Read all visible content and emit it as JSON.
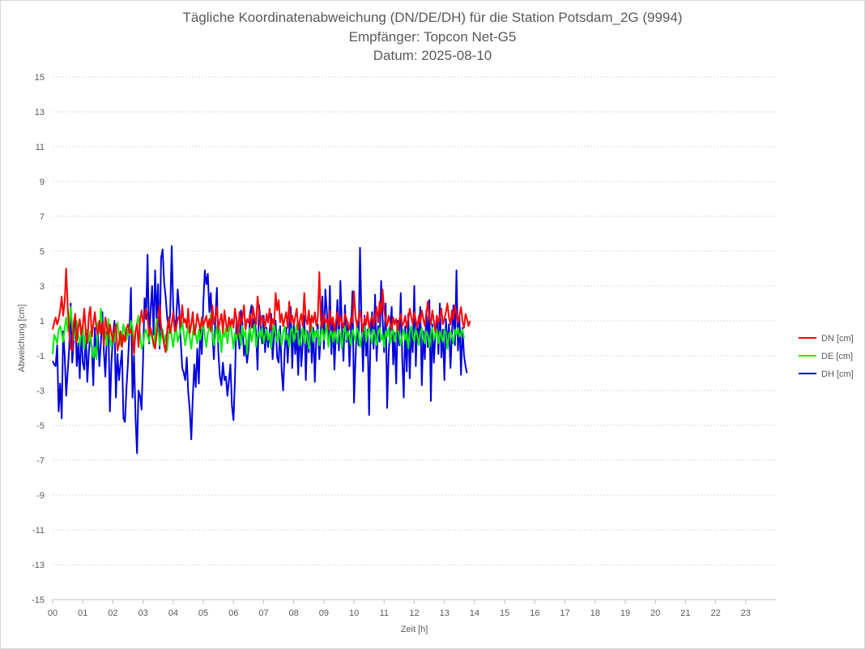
{
  "chart_data": {
    "type": "line",
    "title_lines": [
      "Tägliche Koordinatenabweichung (DN/DE/DH) für die Station Potsdam_2G (9994)",
      "Empfänger: Topcon Net-G5",
      "Datum: 2025-08-10"
    ],
    "xlabel": "Zeit [h]",
    "ylabel": "Abweichung [cm]",
    "xlim": [
      0,
      24
    ],
    "ylim": [
      -15,
      15
    ],
    "x_ticks": [
      "00",
      "01",
      "02",
      "03",
      "04",
      "05",
      "06",
      "07",
      "08",
      "09",
      "10",
      "11",
      "12",
      "13",
      "14",
      "15",
      "16",
      "17",
      "18",
      "19",
      "20",
      "21",
      "22",
      "23"
    ],
    "y_ticks": [
      15,
      13,
      11,
      9,
      7,
      5,
      3,
      1,
      -1,
      -3,
      -5,
      -7,
      -9,
      -11,
      -13,
      -15
    ],
    "grid": "horizontal dotted",
    "legend_position": "right",
    "sample_interval_h": 0.05,
    "series": [
      {
        "name": "DN [cm]",
        "color": "#ff0000",
        "values": [
          0.5,
          0.9,
          1.2,
          0.8,
          1.1,
          1.6,
          2.4,
          1.3,
          2.1,
          4.0,
          1.8,
          0.3,
          -0.6,
          -0.7,
          0.9,
          1.4,
          -0.2,
          0.6,
          1.1,
          0.2,
          0.7,
          1.7,
          0.4,
          -0.3,
          1.3,
          1.8,
          0.1,
          0.8,
          1.5,
          0.6,
          0.2,
          1.0,
          0.3,
          0.9,
          -0.4,
          1.2,
          0.6,
          0.1,
          0.8,
          0.3,
          -0.2,
          0.5,
          0.8,
          -0.7,
          -0.3,
          0.4,
          -0.5,
          0.2,
          -0.2,
          0.6,
          0.8,
          0.3,
          0.5,
          0.1,
          -0.9,
          0.4,
          0.8,
          -0.5,
          1.0,
          1.6,
          0.9,
          1.3,
          1.7,
          1.2,
          0.2,
          0.6,
          0.1,
          -0.3,
          -0.6,
          0.2,
          0.9,
          1.9,
          0.7,
          0.2,
          -0.4,
          -0.8,
          0.5,
          1.2,
          0.3,
          0.8,
          1.5,
          0.4,
          0.6,
          1.1,
          1.3,
          0.7,
          1.9,
          0.9,
          1.1,
          0.6,
          1.7,
          0.3,
          0.8,
          1.5,
          0.2,
          0.6,
          1.4,
          0.9,
          0.5,
          1.2,
          0.7,
          1.0,
          1.3,
          0.6,
          1.1,
          0.4,
          1.9,
          0.8,
          1.2,
          1.8,
          0.5,
          1.0,
          1.4,
          0.3,
          1.6,
          0.9,
          0.4,
          1.2,
          0.7,
          1.1,
          0.6,
          1.7,
          1.0,
          0.2,
          1.5,
          0.8,
          1.2,
          1.9,
          0.5,
          1.1,
          0.9,
          1.4,
          0.6,
          1.8,
          1.2,
          0.8,
          2.4,
          1.5,
          0.7,
          1.3,
          1.0,
          0.6,
          1.4,
          0.9,
          1.7,
          0.5,
          1.1,
          0.8,
          2.6,
          1.6,
          2.2,
          0.9,
          1.4,
          0.7,
          1.1,
          1.5,
          0.6,
          2.1,
          0.9,
          1.3,
          0.8,
          1.2,
          1.7,
          0.5,
          1.0,
          1.4,
          0.7,
          2.6,
          1.1,
          0.8,
          1.6,
          0.4,
          1.3,
          0.9,
          1.5,
          0.7,
          1.2,
          3.8,
          1.0,
          0.6,
          1.4,
          0.9,
          1.1,
          0.5,
          1.6,
          0.8,
          1.2,
          0.4,
          1.0,
          1.5,
          0.7,
          1.3,
          0.9,
          0.6,
          1.4,
          1.1,
          0.8,
          0.5,
          1.2,
          0.9,
          2.7,
          1.3,
          0.7,
          1.1,
          1.6,
          0.9,
          0.4,
          1.2,
          0.8,
          1.5,
          0.6,
          1.0,
          1.3,
          0.7,
          1.1,
          1.8,
          0.9,
          2.1,
          1.4,
          2.8,
          1.6,
          1.0,
          0.7,
          1.3,
          0.9,
          0.5,
          1.2,
          0.8,
          1.1,
          0.4,
          1.0,
          1.4,
          0.7,
          0.9,
          1.3,
          0.6,
          1.1,
          1.7,
          1.2,
          0.8,
          1.5,
          1.0,
          0.6,
          1.3,
          0.9,
          1.6,
          1.1,
          0.7,
          1.4,
          2.1,
          1.2,
          0.8,
          1.6,
          1.0,
          0.4,
          1.3,
          0.9,
          1.2,
          1.7,
          0.8,
          1.1,
          1.5,
          2.0,
          1.2,
          0.8,
          1.6,
          1.1,
          1.9,
          1.4,
          0.9,
          1.3,
          1.8,
          1.0,
          0.6,
          1.4,
          1.1,
          0.7,
          1.0
        ]
      },
      {
        "name": "DE [cm]",
        "color": "#00ee00",
        "values": [
          -0.9,
          0.2,
          0.0,
          -0.3,
          0.5,
          0.7,
          0.3,
          -0.2,
          0.6,
          1.2,
          0.4,
          0.8,
          1.8,
          0.6,
          -0.1,
          0.4,
          1.0,
          0.2,
          -0.4,
          0.3,
          0.8,
          -0.6,
          0.1,
          0.5,
          -0.2,
          0.4,
          -0.8,
          -1.1,
          -0.5,
          -1.2,
          0.9,
          0.3,
          1.7,
          0.6,
          -0.2,
          0.4,
          -0.4,
          1.1,
          0.0,
          -0.5,
          0.3,
          -0.2,
          0.6,
          0.9,
          0.2,
          -0.4,
          0.1,
          0.8,
          0.3,
          -0.1,
          0.5,
          0.2,
          1.0,
          0.6,
          -0.3,
          0.4,
          0.9,
          1.3,
          0.2,
          -0.6,
          -0.4,
          0.3,
          0.5,
          0.1,
          -0.2,
          0.6,
          0.3,
          -0.5,
          0.2,
          1.1,
          0.7,
          -0.4,
          0.1,
          0.5,
          -0.3,
          0.2,
          -0.7,
          0.4,
          0.8,
          0.1,
          -0.5,
          0.3,
          0.6,
          -0.2,
          0.1,
          0.5,
          0.9,
          0.3,
          -0.4,
          0.2,
          0.7,
          0.0,
          -0.6,
          0.3,
          0.8,
          0.2,
          -0.3,
          0.5,
          -0.1,
          0.4,
          0.9,
          0.1,
          -0.5,
          0.3,
          0.6,
          1.4,
          0.2,
          -0.4,
          0.1,
          0.7,
          -0.2,
          0.5,
          -0.8,
          0.3,
          0.1,
          0.6,
          -0.3,
          0.4,
          0.9,
          0.2,
          -0.6,
          0.3,
          -0.1,
          0.5,
          0.2,
          -0.4,
          0.7,
          0.1,
          0.4,
          -0.9,
          0.2,
          0.6,
          -0.2,
          0.3,
          0.8,
          -0.5,
          0.1,
          0.4,
          0.0,
          0.6,
          -0.3,
          0.2,
          0.5,
          -0.1,
          0.3,
          -0.6,
          0.4,
          0.8,
          0.2,
          -0.2,
          0.5,
          0.1,
          -0.4,
          0.3,
          0.7,
          -0.1,
          0.2,
          -0.5,
          0.4,
          0.6,
          -0.2,
          0.3,
          0.8,
          0.1,
          -0.4,
          0.2,
          0.6,
          -0.3,
          0.5,
          0.1,
          -0.6,
          0.3,
          0.7,
          -0.2,
          0.4,
          0.1,
          0.5,
          -0.4,
          0.2,
          0.6,
          -0.1,
          0.3,
          0.8,
          -0.5,
          0.2,
          0.4,
          -0.2,
          0.6,
          0.1,
          -0.3,
          0.5,
          0.2,
          -0.6,
          0.3,
          0.7,
          -0.1,
          0.4,
          0.1,
          -0.4,
          0.5,
          0.2,
          -0.2,
          0.6,
          0.3,
          -0.5,
          0.1,
          0.4,
          0.7,
          -0.2,
          0.3,
          0.6,
          0.1,
          -0.3,
          0.5,
          0.2,
          -0.4,
          0.3,
          0.6,
          -0.1,
          0.2,
          -0.5,
          0.4,
          0.1,
          0.6,
          -0.3,
          0.2,
          0.5,
          -0.2,
          0.3,
          0.8,
          0.1,
          -0.4,
          0.2,
          0.5,
          -0.1,
          0.3,
          -0.6,
          0.4,
          0.7,
          0.1,
          -0.2,
          0.5,
          0.2,
          -0.4,
          0.3,
          0.6,
          0.0,
          -0.3,
          0.4,
          0.2,
          -0.5,
          0.3,
          0.6,
          -0.1,
          0.2,
          0.5,
          -0.3,
          0.4,
          0.1,
          -0.2,
          0.5,
          0.3,
          -0.6,
          0.2,
          0.4,
          0.1,
          -0.3,
          0.5,
          0.2,
          0.6,
          0.1,
          0.3,
          0.5,
          0.0
        ]
      },
      {
        "name": "DH [cm]",
        "color": "#0000dd",
        "values": [
          -1.3,
          -1.5,
          -1.6,
          -0.4,
          -4.2,
          -2.6,
          -4.6,
          0.4,
          -1.0,
          -3.3,
          -1.9,
          -0.5,
          2.0,
          -1.4,
          -0.1,
          1.4,
          -1.6,
          -0.3,
          -2.3,
          0.6,
          -1.4,
          -1.8,
          0.4,
          -2.5,
          -0.8,
          0.2,
          -0.5,
          -2.7,
          0.6,
          -1.1,
          0.2,
          -1.6,
          -0.3,
          1.5,
          -0.8,
          -2.2,
          0.3,
          0.9,
          -4.2,
          -1.4,
          0.1,
          1.0,
          -3.4,
          -0.9,
          -2.4,
          -1.5,
          -0.7,
          -4.6,
          -4.8,
          -2.8,
          -1.4,
          0.5,
          2.9,
          -3.4,
          -1.0,
          -4.5,
          -6.6,
          -3.0,
          -3.3,
          -4.1,
          -1.3,
          2.3,
          1.1,
          4.8,
          -0.3,
          1.6,
          3.0,
          0.2,
          3.9,
          1.1,
          3.1,
          -0.6,
          4.6,
          5.1,
          3.2,
          2.4,
          1.2,
          0.6,
          1.4,
          5.3,
          1.9,
          0.5,
          1.1,
          2.8,
          1.7,
          -0.1,
          -1.7,
          -2.0,
          -2.4,
          -1.1,
          -3.1,
          -4.1,
          -5.8,
          -3.4,
          -1.5,
          -2.8,
          -0.6,
          -2.6,
          0.7,
          -0.9,
          2.0,
          3.9,
          3.1,
          3.7,
          1.5,
          2.6,
          0.3,
          -1.2,
          1.1,
          2.9,
          -0.8,
          -2.2,
          -2.7,
          -1.4,
          -2.4,
          -2.2,
          -3.3,
          -2.4,
          -1.5,
          -3.9,
          -4.7,
          -2.3,
          1.2,
          0.3,
          -0.6,
          1.6,
          0.8,
          -1.0,
          -0.4,
          -1.4,
          -0.6,
          1.4,
          1.9,
          0.6,
          1.2,
          0.3,
          -1.8,
          1.9,
          0.9,
          -0.3,
          1.3,
          -0.8,
          0.6,
          -0.5,
          0.4,
          1.4,
          -1.2,
          0.2,
          1.0,
          -1.1,
          -1.4,
          0.7,
          -1.9,
          -3.0,
          -0.7,
          0.6,
          -1.4,
          0.4,
          1.8,
          -1.7,
          0.8,
          -0.9,
          0.3,
          -2.1,
          0.9,
          -1.6,
          -0.3,
          1.3,
          -2.4,
          0.4,
          -0.8,
          1.1,
          -1.4,
          0.6,
          -2.5,
          0.1,
          0.8,
          -1.2,
          0.4,
          2.4,
          -0.6,
          2.8,
          1.5,
          -0.4,
          3.0,
          -0.9,
          1.2,
          -1.8,
          0.4,
          2.2,
          -0.7,
          3.3,
          0.6,
          -1.3,
          1.9,
          -0.2,
          0.9,
          -1.6,
          0.3,
          2.7,
          -3.7,
          -1.2,
          0.8,
          -0.4,
          5.2,
          0.9,
          -1.9,
          1.3,
          -1.0,
          0.5,
          -4.4,
          0.2,
          1.5,
          -0.6,
          2.5,
          -1.3,
          0.7,
          -0.2,
          3.3,
          1.1,
          -0.8,
          2.0,
          -4.0,
          -0.9,
          0.6,
          1.8,
          -1.5,
          0.3,
          -2.6,
          1.0,
          -0.4,
          2.6,
          -1.1,
          -3.4,
          0.7,
          -1.9,
          1.4,
          -2.3,
          0.5,
          -0.8,
          3.0,
          -1.6,
          0.9,
          -0.3,
          1.8,
          -2.7,
          0.4,
          -1.2,
          1.6,
          -0.5,
          2.2,
          -3.6,
          0.8,
          -1.4,
          0.2,
          1.3,
          -0.9,
          2.0,
          -1.1,
          0.5,
          -2.4,
          1.1,
          -0.6,
          0.8,
          -1.7,
          0.3,
          1.9,
          -0.4,
          3.9,
          -0.7,
          1.2,
          -2.1,
          0.6,
          -1.0,
          -1.6,
          -2.0
        ]
      }
    ]
  }
}
